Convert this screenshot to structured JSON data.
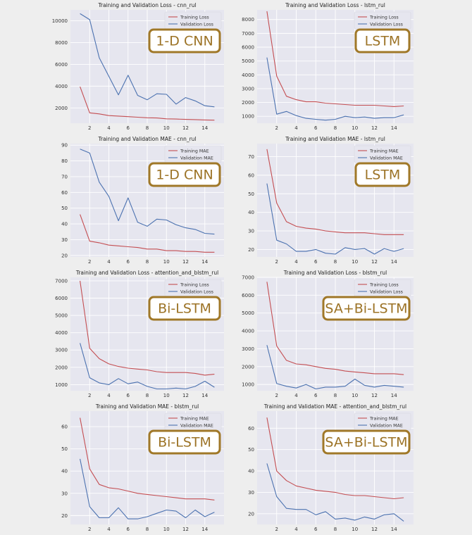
{
  "colors": {
    "page_bg": "#eeeeee",
    "plot_bg": "#e6e6ef",
    "grid": "#ffffff",
    "training": "#c44e52",
    "validation": "#4c72b0",
    "badge_border": "#a07828",
    "badge_text": "#9c7326",
    "badge_fill": "#ffffff"
  },
  "chart_data": [
    {
      "type": "line",
      "title": "Training and Validation Loss - cnn_rul",
      "badge": "1-D CNN",
      "xlabel": "",
      "ylabel": "",
      "xlim": [
        0,
        16
      ],
      "ylim": [
        600,
        11000
      ],
      "xticks": [
        2,
        4,
        6,
        8,
        10,
        12,
        14
      ],
      "yticks": [
        2000,
        4000,
        6000,
        8000,
        10000
      ],
      "grid": true,
      "legend": "top-right",
      "x": [
        1,
        2,
        3,
        4,
        5,
        6,
        7,
        8,
        9,
        10,
        11,
        12,
        13,
        14,
        15
      ],
      "series": [
        {
          "name": "Training Loss",
          "values": [
            3950,
            1550,
            1450,
            1300,
            1250,
            1200,
            1150,
            1100,
            1080,
            1000,
            980,
            950,
            930,
            900,
            880
          ]
        },
        {
          "name": "Validation Loss",
          "values": [
            10650,
            10100,
            6600,
            4900,
            3200,
            5000,
            3150,
            2750,
            3300,
            3250,
            2350,
            2950,
            2650,
            2200,
            2100
          ]
        }
      ]
    },
    {
      "type": "line",
      "title": "Training and Validation Loss - lstm_rul",
      "badge": "LSTM",
      "xlabel": "",
      "ylabel": "",
      "xlim": [
        0,
        16
      ],
      "ylim": [
        500,
        8700
      ],
      "xticks": [
        2,
        4,
        6,
        8,
        10,
        12,
        14
      ],
      "yticks": [
        1000,
        2000,
        3000,
        4000,
        5000,
        6000,
        7000,
        8000
      ],
      "grid": true,
      "legend": "top-right",
      "x": [
        1,
        2,
        3,
        4,
        5,
        6,
        7,
        8,
        9,
        10,
        11,
        12,
        13,
        14,
        15
      ],
      "series": [
        {
          "name": "Training Loss",
          "values": [
            8600,
            3900,
            2450,
            2200,
            2050,
            2050,
            1950,
            1900,
            1850,
            1800,
            1800,
            1800,
            1750,
            1700,
            1750
          ]
        },
        {
          "name": "Validation Loss",
          "values": [
            5250,
            1150,
            1350,
            1050,
            850,
            780,
            720,
            780,
            1000,
            900,
            950,
            850,
            900,
            900,
            1100
          ]
        }
      ]
    },
    {
      "type": "line",
      "title": "Training and Validation MAE - cnn_rul",
      "badge": "1-D CNN",
      "xlabel": "",
      "ylabel": "",
      "xlim": [
        0,
        16
      ],
      "ylim": [
        19,
        91
      ],
      "xticks": [
        2,
        4,
        6,
        8,
        10,
        12,
        14
      ],
      "yticks": [
        20,
        30,
        40,
        50,
        60,
        70,
        80,
        90
      ],
      "grid": true,
      "legend": "top-right",
      "x": [
        1,
        2,
        3,
        4,
        5,
        6,
        7,
        8,
        9,
        10,
        11,
        12,
        13,
        14,
        15
      ],
      "series": [
        {
          "name": "Training MAE",
          "values": [
            46,
            29,
            28,
            26.5,
            26,
            25.5,
            25,
            24,
            24,
            23,
            23,
            22.5,
            22.5,
            22,
            22
          ]
        },
        {
          "name": "Validation MAE",
          "values": [
            87.5,
            85,
            66.5,
            57.5,
            42,
            56.5,
            41,
            38.5,
            43,
            42.5,
            39.5,
            37.5,
            36.5,
            34,
            33.5
          ]
        }
      ]
    },
    {
      "type": "line",
      "title": "Training and Validation MAE - lstm_rul",
      "badge": "LSTM",
      "xlabel": "",
      "ylabel": "",
      "xlim": [
        0,
        16
      ],
      "ylim": [
        16,
        77
      ],
      "xticks": [
        2,
        4,
        6,
        8,
        10,
        12,
        14
      ],
      "yticks": [
        20,
        30,
        40,
        50,
        60,
        70
      ],
      "grid": true,
      "legend": "top-right",
      "x": [
        1,
        2,
        3,
        4,
        5,
        6,
        7,
        8,
        9,
        10,
        11,
        12,
        13,
        14,
        15
      ],
      "series": [
        {
          "name": "Training MAE",
          "values": [
            74,
            45,
            35,
            32.5,
            31.5,
            31,
            30,
            29.5,
            29,
            29,
            29,
            28.5,
            28,
            28,
            28
          ]
        },
        {
          "name": "Validation MAE",
          "values": [
            55.5,
            25,
            23,
            19,
            19,
            20,
            18,
            17.5,
            21,
            20,
            20.5,
            17.5,
            20.5,
            19,
            20.5
          ]
        }
      ]
    },
    {
      "type": "line",
      "title": "Training and Validation Loss - attention_and_blstm_rul",
      "badge": "Bi-LSTM",
      "xlabel": "",
      "ylabel": "",
      "xlim": [
        0,
        16
      ],
      "ylim": [
        650,
        7200
      ],
      "xticks": [
        2,
        4,
        6,
        8,
        10,
        12,
        14
      ],
      "yticks": [
        1000,
        2000,
        3000,
        4000,
        5000,
        6000,
        7000
      ],
      "grid": true,
      "legend": "top-right",
      "x": [
        1,
        2,
        3,
        4,
        5,
        6,
        7,
        8,
        9,
        10,
        11,
        12,
        13,
        14,
        15
      ],
      "series": [
        {
          "name": "Training Loss",
          "values": [
            7000,
            3100,
            2500,
            2200,
            2050,
            1950,
            1900,
            1850,
            1750,
            1700,
            1700,
            1700,
            1650,
            1550,
            1600
          ]
        },
        {
          "name": "Validation Loss",
          "values": [
            3400,
            1400,
            1100,
            1000,
            1350,
            1050,
            1150,
            900,
            750,
            750,
            800,
            750,
            900,
            1200,
            850
          ]
        }
      ]
    },
    {
      "type": "line",
      "title": "Training and Validation Loss - blstm_rul",
      "badge": "SA+Bi-LSTM",
      "xlabel": "",
      "ylabel": "",
      "xlim": [
        0,
        16
      ],
      "ylim": [
        650,
        7000
      ],
      "xticks": [
        2,
        4,
        6,
        8,
        10,
        12,
        14
      ],
      "yticks": [
        1000,
        2000,
        3000,
        4000,
        5000,
        6000,
        7000
      ],
      "grid": true,
      "legend": "top-right",
      "x": [
        1,
        2,
        3,
        4,
        5,
        6,
        7,
        8,
        9,
        10,
        11,
        12,
        13,
        14,
        15
      ],
      "series": [
        {
          "name": "Training Loss",
          "values": [
            6750,
            3150,
            2350,
            2150,
            2100,
            2000,
            1900,
            1850,
            1750,
            1700,
            1650,
            1600,
            1600,
            1600,
            1550
          ]
        },
        {
          "name": "Validation Loss",
          "values": [
            3200,
            1050,
            900,
            800,
            1000,
            750,
            850,
            850,
            900,
            1300,
            950,
            850,
            950,
            900,
            850
          ]
        }
      ]
    },
    {
      "type": "line",
      "title": "Training and Validation MAE - blstm_rul",
      "badge": "Bi-LSTM",
      "xlabel": "",
      "ylabel": "",
      "xlim": [
        0,
        16
      ],
      "ylim": [
        16,
        67
      ],
      "xticks": [
        2,
        4,
        6,
        8,
        10,
        12,
        14
      ],
      "yticks": [
        20,
        30,
        40,
        50,
        60
      ],
      "grid": true,
      "legend": "top-right",
      "x": [
        1,
        2,
        3,
        4,
        5,
        6,
        7,
        8,
        9,
        10,
        11,
        12,
        13,
        14,
        15
      ],
      "series": [
        {
          "name": "Training MAE",
          "values": [
            64,
            41,
            34,
            32.5,
            32,
            31,
            30,
            29.5,
            29,
            28.5,
            28,
            27.5,
            27.5,
            27.5,
            27
          ]
        },
        {
          "name": "Validation MAE",
          "values": [
            45.5,
            24,
            19,
            19,
            23.5,
            18.5,
            18.5,
            19.5,
            21,
            22.5,
            22,
            19,
            22.5,
            19.5,
            21.5
          ]
        }
      ]
    },
    {
      "type": "line",
      "title": "Training and Validation MAE - attention_and_blstm_rul",
      "badge": "SA+Bi-LSTM",
      "xlabel": "",
      "ylabel": "",
      "xlim": [
        0,
        16
      ],
      "ylim": [
        15,
        68
      ],
      "xticks": [
        2,
        4,
        6,
        8,
        10,
        12,
        14
      ],
      "yticks": [
        20,
        30,
        40,
        50,
        60
      ],
      "grid": true,
      "legend": "top-right",
      "x": [
        1,
        2,
        3,
        4,
        5,
        6,
        7,
        8,
        9,
        10,
        11,
        12,
        13,
        14,
        15
      ],
      "series": [
        {
          "name": "Training MAE",
          "values": [
            65,
            40,
            35.5,
            33,
            32,
            31,
            30.5,
            30,
            29,
            28.5,
            28.5,
            28,
            27.5,
            27,
            27.5
          ]
        },
        {
          "name": "Validation MAE",
          "values": [
            43.5,
            28,
            22.5,
            22,
            22,
            19.5,
            21,
            17.5,
            18,
            17,
            18.5,
            17.5,
            19.5,
            20,
            16.5
          ]
        }
      ]
    }
  ]
}
